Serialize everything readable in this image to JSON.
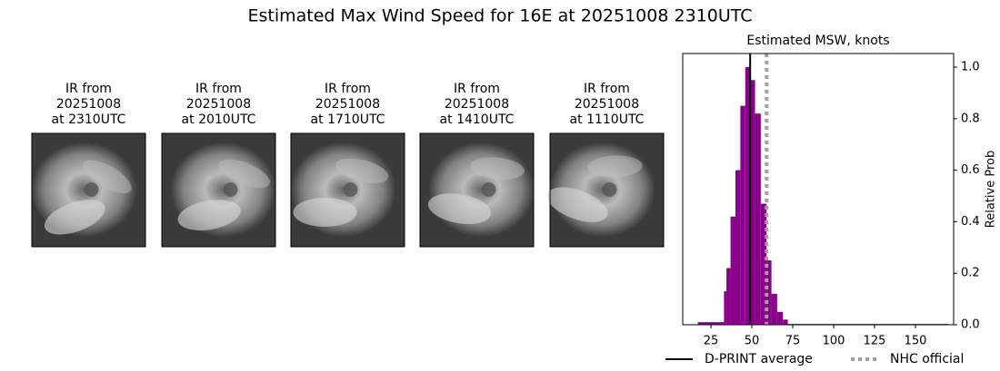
{
  "title": "Estimated Max Wind Speed for 16E at 20251008 2310UTC",
  "panels": [
    {
      "lines": [
        "IR from",
        "20251008",
        "at 2310UTC"
      ]
    },
    {
      "lines": [
        "IR from",
        "20251008",
        "at 2010UTC"
      ]
    },
    {
      "lines": [
        "IR from",
        "20251008",
        "at 1710UTC"
      ]
    },
    {
      "lines": [
        "IR from",
        "20251008",
        "at 1410UTC"
      ]
    },
    {
      "lines": [
        "IR from",
        "20251008",
        "at 1110UTC"
      ]
    }
  ],
  "chart_data": {
    "type": "histogram",
    "title": "Estimated MSW, knots",
    "y_label": "Relative Prob",
    "bins": [
      17,
      33,
      34.5,
      37,
      40,
      43,
      46,
      49,
      52,
      55.5,
      59,
      62,
      65.5,
      69,
      72,
      170
    ],
    "values": [
      0.01,
      0.13,
      0.22,
      0.42,
      0.6,
      0.85,
      1.0,
      0.95,
      0.82,
      0.47,
      0.25,
      0.12,
      0.05,
      0.02,
      0.003
    ],
    "color": "#8b008b",
    "lines": [
      {
        "name": "D-PRINT average",
        "value": 49,
        "color": "#000000",
        "style": "solid"
      },
      {
        "name": "NHC official",
        "value": 59,
        "color": "#a0a0a0",
        "style": "dotted"
      }
    ],
    "xlim": [
      7.8,
      173.3
    ],
    "xticks": [
      25,
      50,
      75,
      100,
      125,
      150
    ],
    "ylim": [
      0,
      1.053
    ],
    "yticks": [
      {
        "value": 0,
        "label": "0.0"
      },
      0.2,
      0.4,
      0.6,
      0.8,
      {
        "value": 1,
        "label": "1.0"
      }
    ],
    "legend": "bottom"
  }
}
